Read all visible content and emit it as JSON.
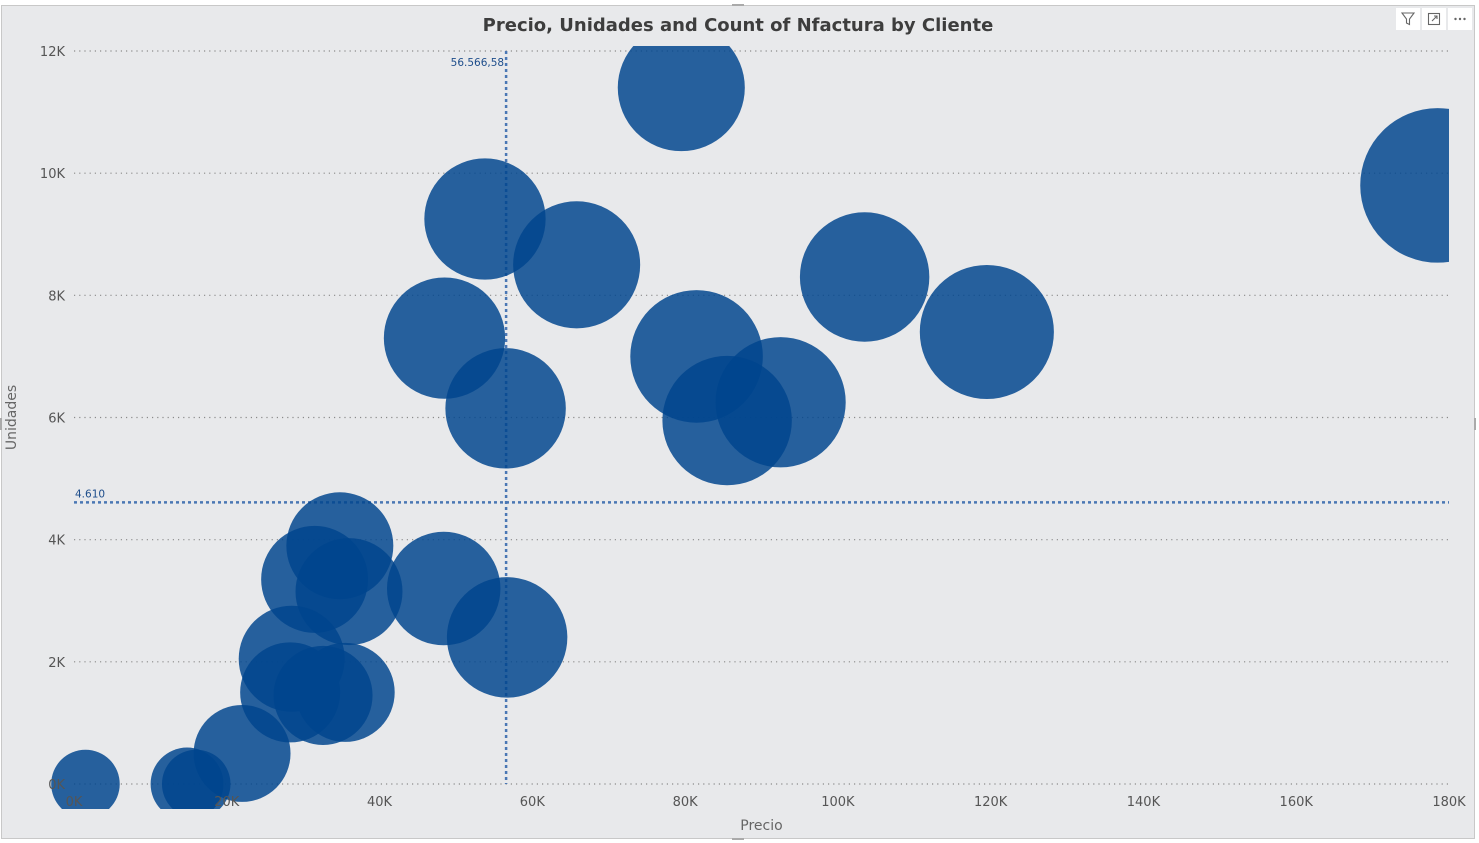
{
  "visual": {
    "title": "Precio, Unidades and Count of Nfactura by Cliente",
    "icons": [
      "filter-icon",
      "focus-mode-icon",
      "more-options-icon"
    ]
  },
  "colors": {
    "bubble": "#00458e",
    "gridline": "#8a8a8a",
    "reference_line": "#4a77b4",
    "background": "#e8e9eb"
  },
  "chart_data": {
    "type": "scatter",
    "subtype": "bubble",
    "title": "Precio, Unidades and Count of Nfactura by Cliente",
    "xlabel": "Precio",
    "ylabel": "Unidades",
    "xlim": [
      0,
      180000
    ],
    "ylim": [
      0,
      12000
    ],
    "x_ticks": [
      "0K",
      "20K",
      "40K",
      "60K",
      "80K",
      "100K",
      "120K",
      "140K",
      "160K",
      "180K"
    ],
    "y_ticks": [
      "0K",
      "2K",
      "4K",
      "6K",
      "8K",
      "10K",
      "12K"
    ],
    "grid": "horizontal-dotted",
    "reference_lines": [
      {
        "axis": "x",
        "value": 56566.58,
        "label": "56.566,58"
      },
      {
        "axis": "y",
        "value": 4610,
        "label": "4.610"
      }
    ],
    "points": [
      {
        "x": 79500,
        "y": 11400,
        "size": 7.9
      },
      {
        "x": 178500,
        "y": 9800,
        "size": 11.7
      },
      {
        "x": 53800,
        "y": 9250,
        "size": 7.2
      },
      {
        "x": 65800,
        "y": 8500,
        "size": 7.9
      },
      {
        "x": 103500,
        "y": 8300,
        "size": 8.2
      },
      {
        "x": 48500,
        "y": 7300,
        "size": 7.2
      },
      {
        "x": 119500,
        "y": 7400,
        "size": 8.8
      },
      {
        "x": 81500,
        "y": 7000,
        "size": 8.6
      },
      {
        "x": 92500,
        "y": 6250,
        "size": 8.3
      },
      {
        "x": 85500,
        "y": 5950,
        "size": 8.2
      },
      {
        "x": 56500,
        "y": 6150,
        "size": 7.1
      },
      {
        "x": 34800,
        "y": 3900,
        "size": 5.6
      },
      {
        "x": 31500,
        "y": 3350,
        "size": 5.6
      },
      {
        "x": 36000,
        "y": 3150,
        "size": 5.6
      },
      {
        "x": 48400,
        "y": 3200,
        "size": 6.3
      },
      {
        "x": 56700,
        "y": 2400,
        "size": 7.1
      },
      {
        "x": 28500,
        "y": 2050,
        "size": 5.5
      },
      {
        "x": 28300,
        "y": 1500,
        "size": 4.9
      },
      {
        "x": 35500,
        "y": 1500,
        "size": 4.8
      },
      {
        "x": 32600,
        "y": 1450,
        "size": 4.8
      },
      {
        "x": 22000,
        "y": 500,
        "size": 4.6
      },
      {
        "x": 1500,
        "y": 0,
        "size": 2.3
      },
      {
        "x": 14800,
        "y": 0,
        "size": 2.6
      },
      {
        "x": 16000,
        "y": 0,
        "size": 2.3
      }
    ]
  }
}
